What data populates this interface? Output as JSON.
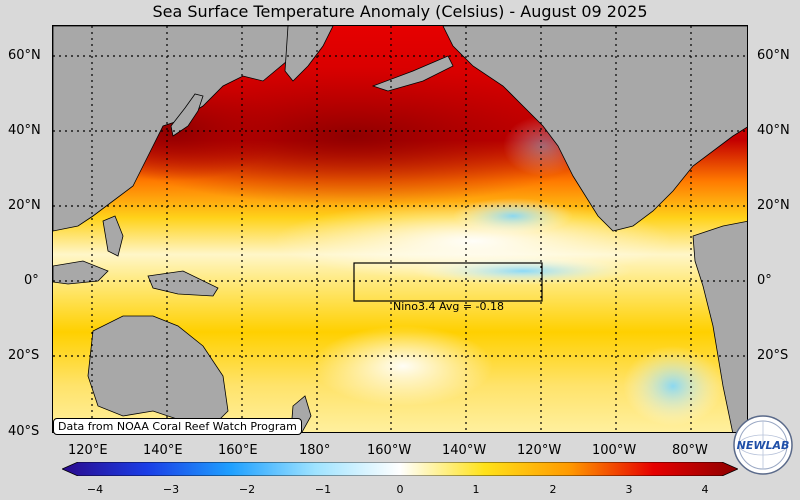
{
  "title": "Sea Surface Temperature Anomaly (Celsius) - August 09 2025",
  "lat_labels_left": [
    "60°N",
    "40°N",
    "20°N",
    "0°",
    "20°S",
    "40°S"
  ],
  "lat_labels_right": [
    "60°N",
    "40°N",
    "20°N",
    "0°",
    "20°S"
  ],
  "lon_labels": [
    "120°E",
    "140°E",
    "160°E",
    "180°",
    "160°W",
    "140°W",
    "120°W",
    "100°W",
    "80°W"
  ],
  "region_box": {
    "name": "Nino3.4",
    "label": "Nino3.4 Avg = -0.18",
    "lon_range": [
      "170°W",
      "120°W"
    ],
    "lat_range": [
      "5°S",
      "5°N"
    ]
  },
  "source_text": "Data from NOAA Coral Reef Watch Program",
  "logo_text": "NEWLAB",
  "colorbar": {
    "ticks": [
      "−4",
      "−3",
      "−2",
      "−1",
      "0",
      "1",
      "2",
      "3",
      "4"
    ],
    "range": [
      -4,
      4
    ],
    "colors": [
      "#2b0a8c",
      "#1a3de6",
      "#1fa0ff",
      "#9fe3ff",
      "#ffffff",
      "#ffe21a",
      "#ff9a00",
      "#e60000",
      "#8c0000"
    ]
  },
  "style": {
    "land": "#a8a8a8",
    "ocean_warm": "#ffb300",
    "ocean_hot": "#d40000",
    "ocean_neutral": "#fff3b0",
    "ocean_cool": "#aee8ff"
  }
}
